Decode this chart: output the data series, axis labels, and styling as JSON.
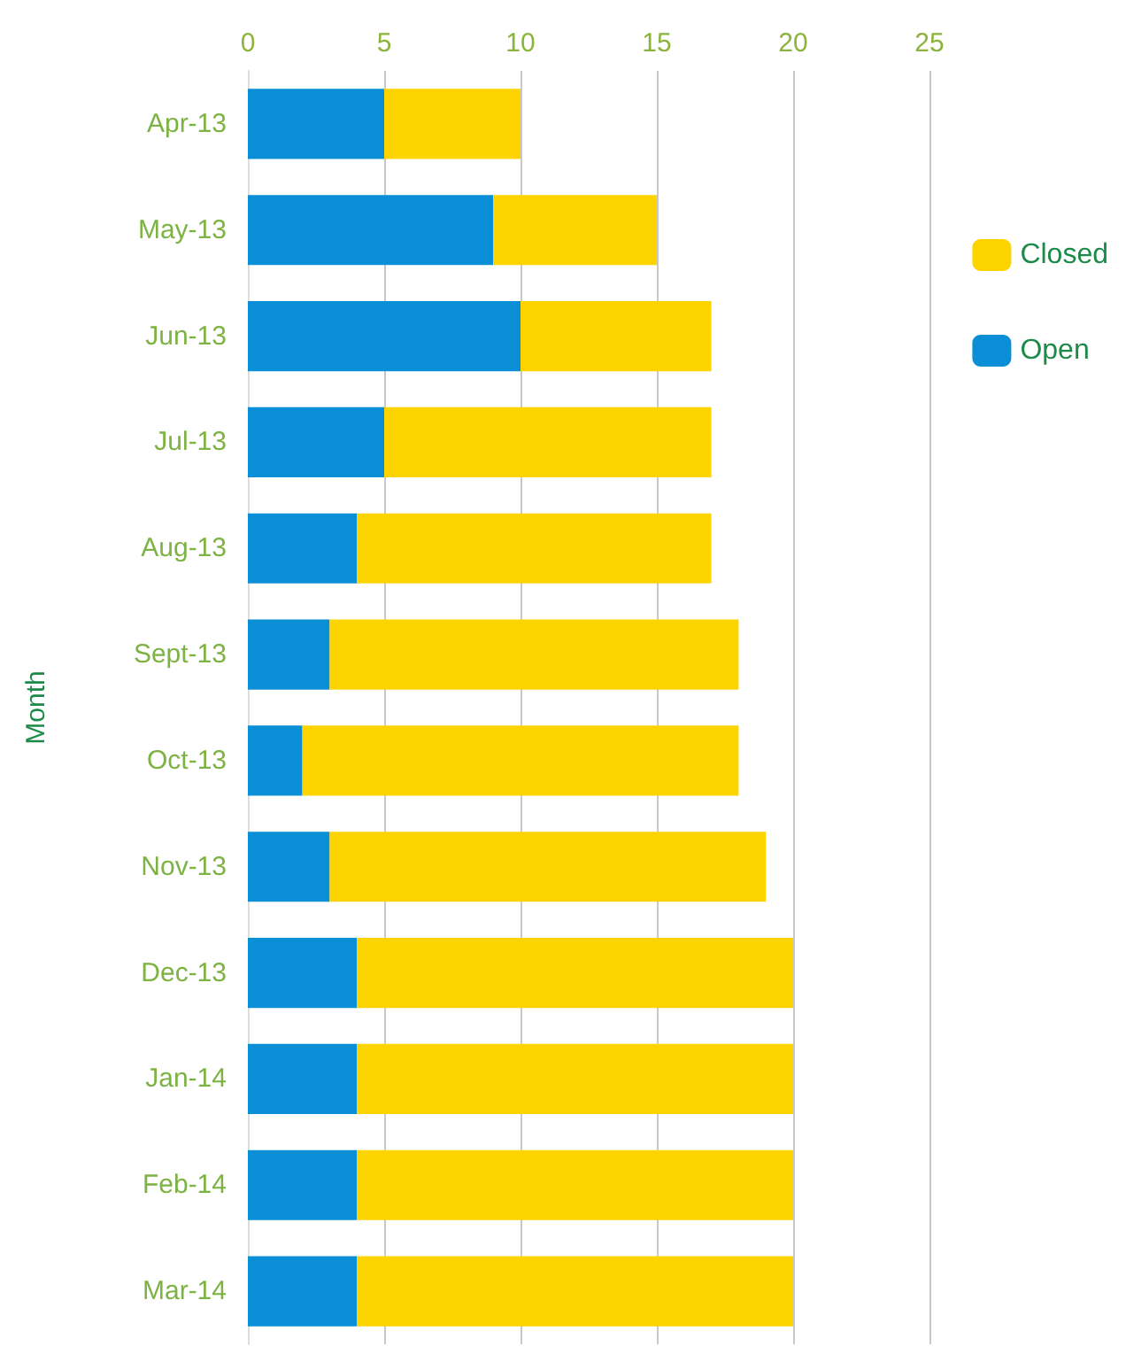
{
  "chart_data": {
    "type": "bar",
    "orientation": "horizontal",
    "stacked": true,
    "ylabel": "Month",
    "categories": [
      "Apr-13",
      "May-13",
      "Jun-13",
      "Jul-13",
      "Aug-13",
      "Sept-13",
      "Oct-13",
      "Nov-13",
      "Dec-13",
      "Jan-14",
      "Feb-14",
      "Mar-14"
    ],
    "series": [
      {
        "name": "Open",
        "color": "#0a8fd6",
        "values": [
          5,
          9,
          10,
          5,
          4,
          3,
          2,
          3,
          4,
          4,
          4,
          4
        ]
      },
      {
        "name": "Closed",
        "color": "#fdd300",
        "values": [
          5,
          6,
          7,
          12,
          13,
          15,
          16,
          16,
          16,
          16,
          16,
          16
        ]
      }
    ],
    "xlim": [
      0,
      25
    ],
    "xticks": [
      0,
      5,
      10,
      15,
      20,
      25
    ],
    "grid": "x",
    "legend": "right"
  }
}
